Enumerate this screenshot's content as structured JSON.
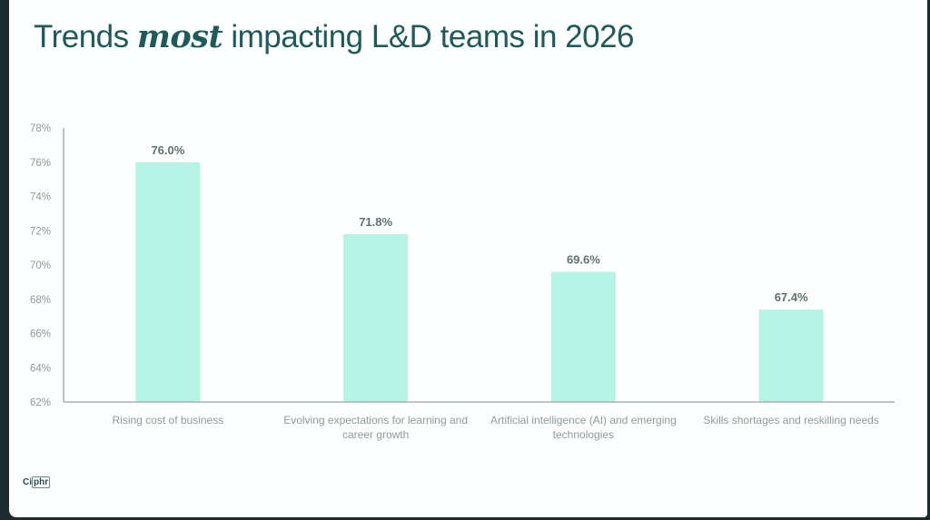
{
  "title": {
    "prefix": "Trends ",
    "emphasis": "most",
    "suffix": " impacting L&D teams in 2026"
  },
  "logo": {
    "part1": "Ci",
    "part2": "phr"
  },
  "colors": {
    "bar": "#b6f4e5",
    "axis": "#a8b2b4",
    "title": "#1f5a5b",
    "data_label": "#5d7271",
    "tick": "#8d9b9e"
  },
  "chart_data": {
    "type": "bar",
    "title": "Trends most impacting L&D teams in 2026",
    "xlabel": "",
    "ylabel": "",
    "ylim": [
      62,
      78
    ],
    "yticks": [
      62,
      64,
      66,
      68,
      70,
      72,
      74,
      76,
      78
    ],
    "ytick_labels": [
      "62%",
      "64%",
      "66%",
      "68%",
      "70%",
      "72%",
      "74%",
      "76%",
      "78%"
    ],
    "grid": false,
    "legend": "none",
    "categories": [
      [
        "Rising cost of business"
      ],
      [
        "Evolving expectations for learning and",
        "career growth"
      ],
      [
        "Artificial intelligence (AI) and emerging",
        "technologies"
      ],
      [
        "Skills shortages and reskilling needs"
      ]
    ],
    "values": [
      76.0,
      71.8,
      69.6,
      67.4
    ],
    "data_labels": [
      "76.0%",
      "71.8%",
      "69.6%",
      "67.4%"
    ]
  }
}
